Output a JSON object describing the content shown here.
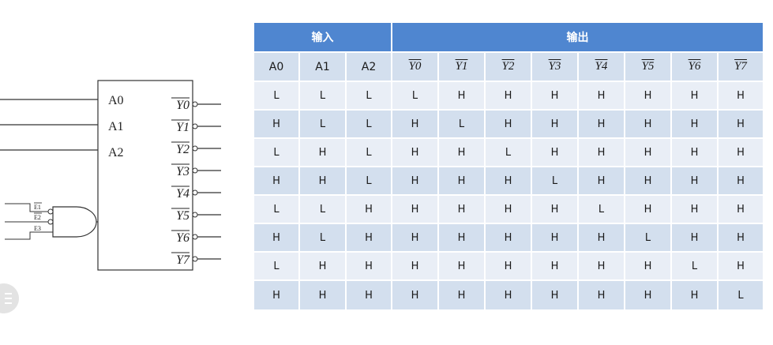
{
  "diagram": {
    "inputs": [
      "A0",
      "A1",
      "A2"
    ],
    "outputs": [
      "Y0",
      "Y1",
      "Y2",
      "Y3",
      "Y4",
      "Y5",
      "Y6",
      "Y7"
    ],
    "enables": [
      "E1",
      "E2",
      "E3"
    ]
  },
  "table": {
    "group_headers": [
      "输入",
      "输出"
    ],
    "columns": [
      "A0",
      "A1",
      "A2",
      "Y0",
      "Y1",
      "Y2",
      "Y3",
      "Y4",
      "Y5",
      "Y6",
      "Y7"
    ],
    "overlined_columns": [
      "Y0",
      "Y1",
      "Y2",
      "Y3",
      "Y4",
      "Y5",
      "Y6",
      "Y7"
    ],
    "rows": [
      [
        "L",
        "L",
        "L",
        "L",
        "H",
        "H",
        "H",
        "H",
        "H",
        "H",
        "H"
      ],
      [
        "H",
        "L",
        "L",
        "H",
        "L",
        "H",
        "H",
        "H",
        "H",
        "H",
        "H"
      ],
      [
        "L",
        "H",
        "L",
        "H",
        "H",
        "L",
        "H",
        "H",
        "H",
        "H",
        "H"
      ],
      [
        "H",
        "H",
        "L",
        "H",
        "H",
        "H",
        "L",
        "H",
        "H",
        "H",
        "H"
      ],
      [
        "L",
        "L",
        "H",
        "H",
        "H",
        "H",
        "H",
        "L",
        "H",
        "H",
        "H"
      ],
      [
        "H",
        "L",
        "H",
        "H",
        "H",
        "H",
        "H",
        "H",
        "L",
        "H",
        "H"
      ],
      [
        "L",
        "H",
        "H",
        "H",
        "H",
        "H",
        "H",
        "H",
        "H",
        "L",
        "H"
      ],
      [
        "H",
        "H",
        "H",
        "H",
        "H",
        "H",
        "H",
        "H",
        "H",
        "H",
        "L"
      ]
    ]
  },
  "colors": {
    "header_blue": "#4f86d0",
    "row_light": "#e9eef6",
    "row_dark": "#d3dfee"
  },
  "menu_icon": "hamburger-icon"
}
